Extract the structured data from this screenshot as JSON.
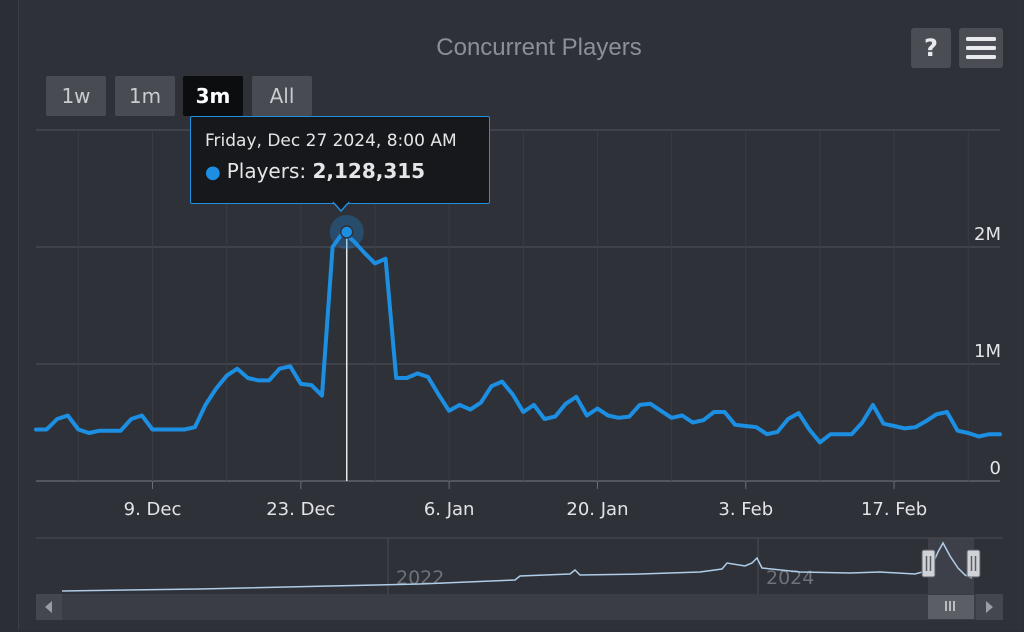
{
  "title": "Concurrent Players",
  "toolbar": {
    "help_label": "?",
    "menu_icon": "hamburger-menu-icon"
  },
  "range_selector": {
    "buttons": [
      "1w",
      "1m",
      "3m",
      "All"
    ],
    "selected": "3m"
  },
  "tooltip": {
    "date": "Friday, Dec 27 2024, 8:00 AM",
    "series_label": "Players:",
    "value": "2,128,315"
  },
  "colors": {
    "series": "#1c8fe3",
    "navigator_line": "#aecde8",
    "background": "#2e3138"
  },
  "navigator": {
    "year_labels": [
      "2022",
      "2024"
    ]
  },
  "chart_data": {
    "type": "line",
    "xlabel": "",
    "ylabel": "",
    "x_ticks": [
      "9. Dec",
      "23. Dec",
      "6. Jan",
      "20. Jan",
      "3. Feb",
      "17. Feb"
    ],
    "y_ticks": [
      "0",
      "1M",
      "2M"
    ],
    "ylim": [
      0,
      3000000
    ],
    "grid": true,
    "highlight": {
      "x": "2024-12-27 08:00",
      "y": 2128315
    },
    "series": [
      {
        "name": "Players",
        "x": [
          "2024-11-28",
          "2024-11-29",
          "2024-11-30",
          "2024-12-01",
          "2024-12-02",
          "2024-12-03",
          "2024-12-04",
          "2024-12-05",
          "2024-12-06",
          "2024-12-07",
          "2024-12-08",
          "2024-12-09",
          "2024-12-10",
          "2024-12-11",
          "2024-12-12",
          "2024-12-13",
          "2024-12-14",
          "2024-12-15",
          "2024-12-16",
          "2024-12-17",
          "2024-12-18",
          "2024-12-19",
          "2024-12-20",
          "2024-12-21",
          "2024-12-22",
          "2024-12-23",
          "2024-12-24",
          "2024-12-25",
          "2024-12-26",
          "2024-12-27",
          "2024-12-28",
          "2024-12-29",
          "2024-12-30",
          "2024-12-31",
          "2025-01-01",
          "2025-01-02",
          "2025-01-03",
          "2025-01-04",
          "2025-01-05",
          "2025-01-06",
          "2025-01-07",
          "2025-01-08",
          "2025-01-09",
          "2025-01-10",
          "2025-01-11",
          "2025-01-12",
          "2025-01-13",
          "2025-01-14",
          "2025-01-15",
          "2025-01-16",
          "2025-01-17",
          "2025-01-18",
          "2025-01-19",
          "2025-01-20",
          "2025-01-21",
          "2025-01-22",
          "2025-01-23",
          "2025-01-24",
          "2025-01-25",
          "2025-01-26",
          "2025-01-27",
          "2025-01-28",
          "2025-01-29",
          "2025-01-30",
          "2025-01-31",
          "2025-02-01",
          "2025-02-02",
          "2025-02-03",
          "2025-02-04",
          "2025-02-05",
          "2025-02-06",
          "2025-02-07",
          "2025-02-08",
          "2025-02-09",
          "2025-02-10",
          "2025-02-11",
          "2025-02-12",
          "2025-02-13",
          "2025-02-14",
          "2025-02-15",
          "2025-02-16",
          "2025-02-17",
          "2025-02-18",
          "2025-02-19",
          "2025-02-20",
          "2025-02-21",
          "2025-02-22",
          "2025-02-23",
          "2025-02-24",
          "2025-02-25",
          "2025-02-26",
          "2025-02-27"
        ],
        "values": [
          440000,
          440000,
          530000,
          560000,
          440000,
          410000,
          430000,
          430000,
          430000,
          530000,
          560000,
          440000,
          440000,
          440000,
          440000,
          460000,
          650000,
          790000,
          900000,
          960000,
          880000,
          860000,
          860000,
          960000,
          980000,
          830000,
          820000,
          730000,
          2000000,
          2128315,
          2050000,
          1950000,
          1860000,
          1900000,
          880000,
          880000,
          920000,
          890000,
          740000,
          600000,
          650000,
          610000,
          670000,
          810000,
          850000,
          740000,
          590000,
          650000,
          530000,
          550000,
          660000,
          720000,
          560000,
          620000,
          560000,
          540000,
          550000,
          650000,
          660000,
          600000,
          540000,
          560000,
          500000,
          520000,
          590000,
          590000,
          480000,
          470000,
          460000,
          400000,
          420000,
          530000,
          580000,
          440000,
          330000,
          400000,
          400000,
          400000,
          500000,
          650000,
          490000,
          470000,
          450000,
          460000,
          510000,
          570000,
          590000,
          430000,
          410000,
          380000,
          400000,
          400000
        ]
      }
    ]
  }
}
